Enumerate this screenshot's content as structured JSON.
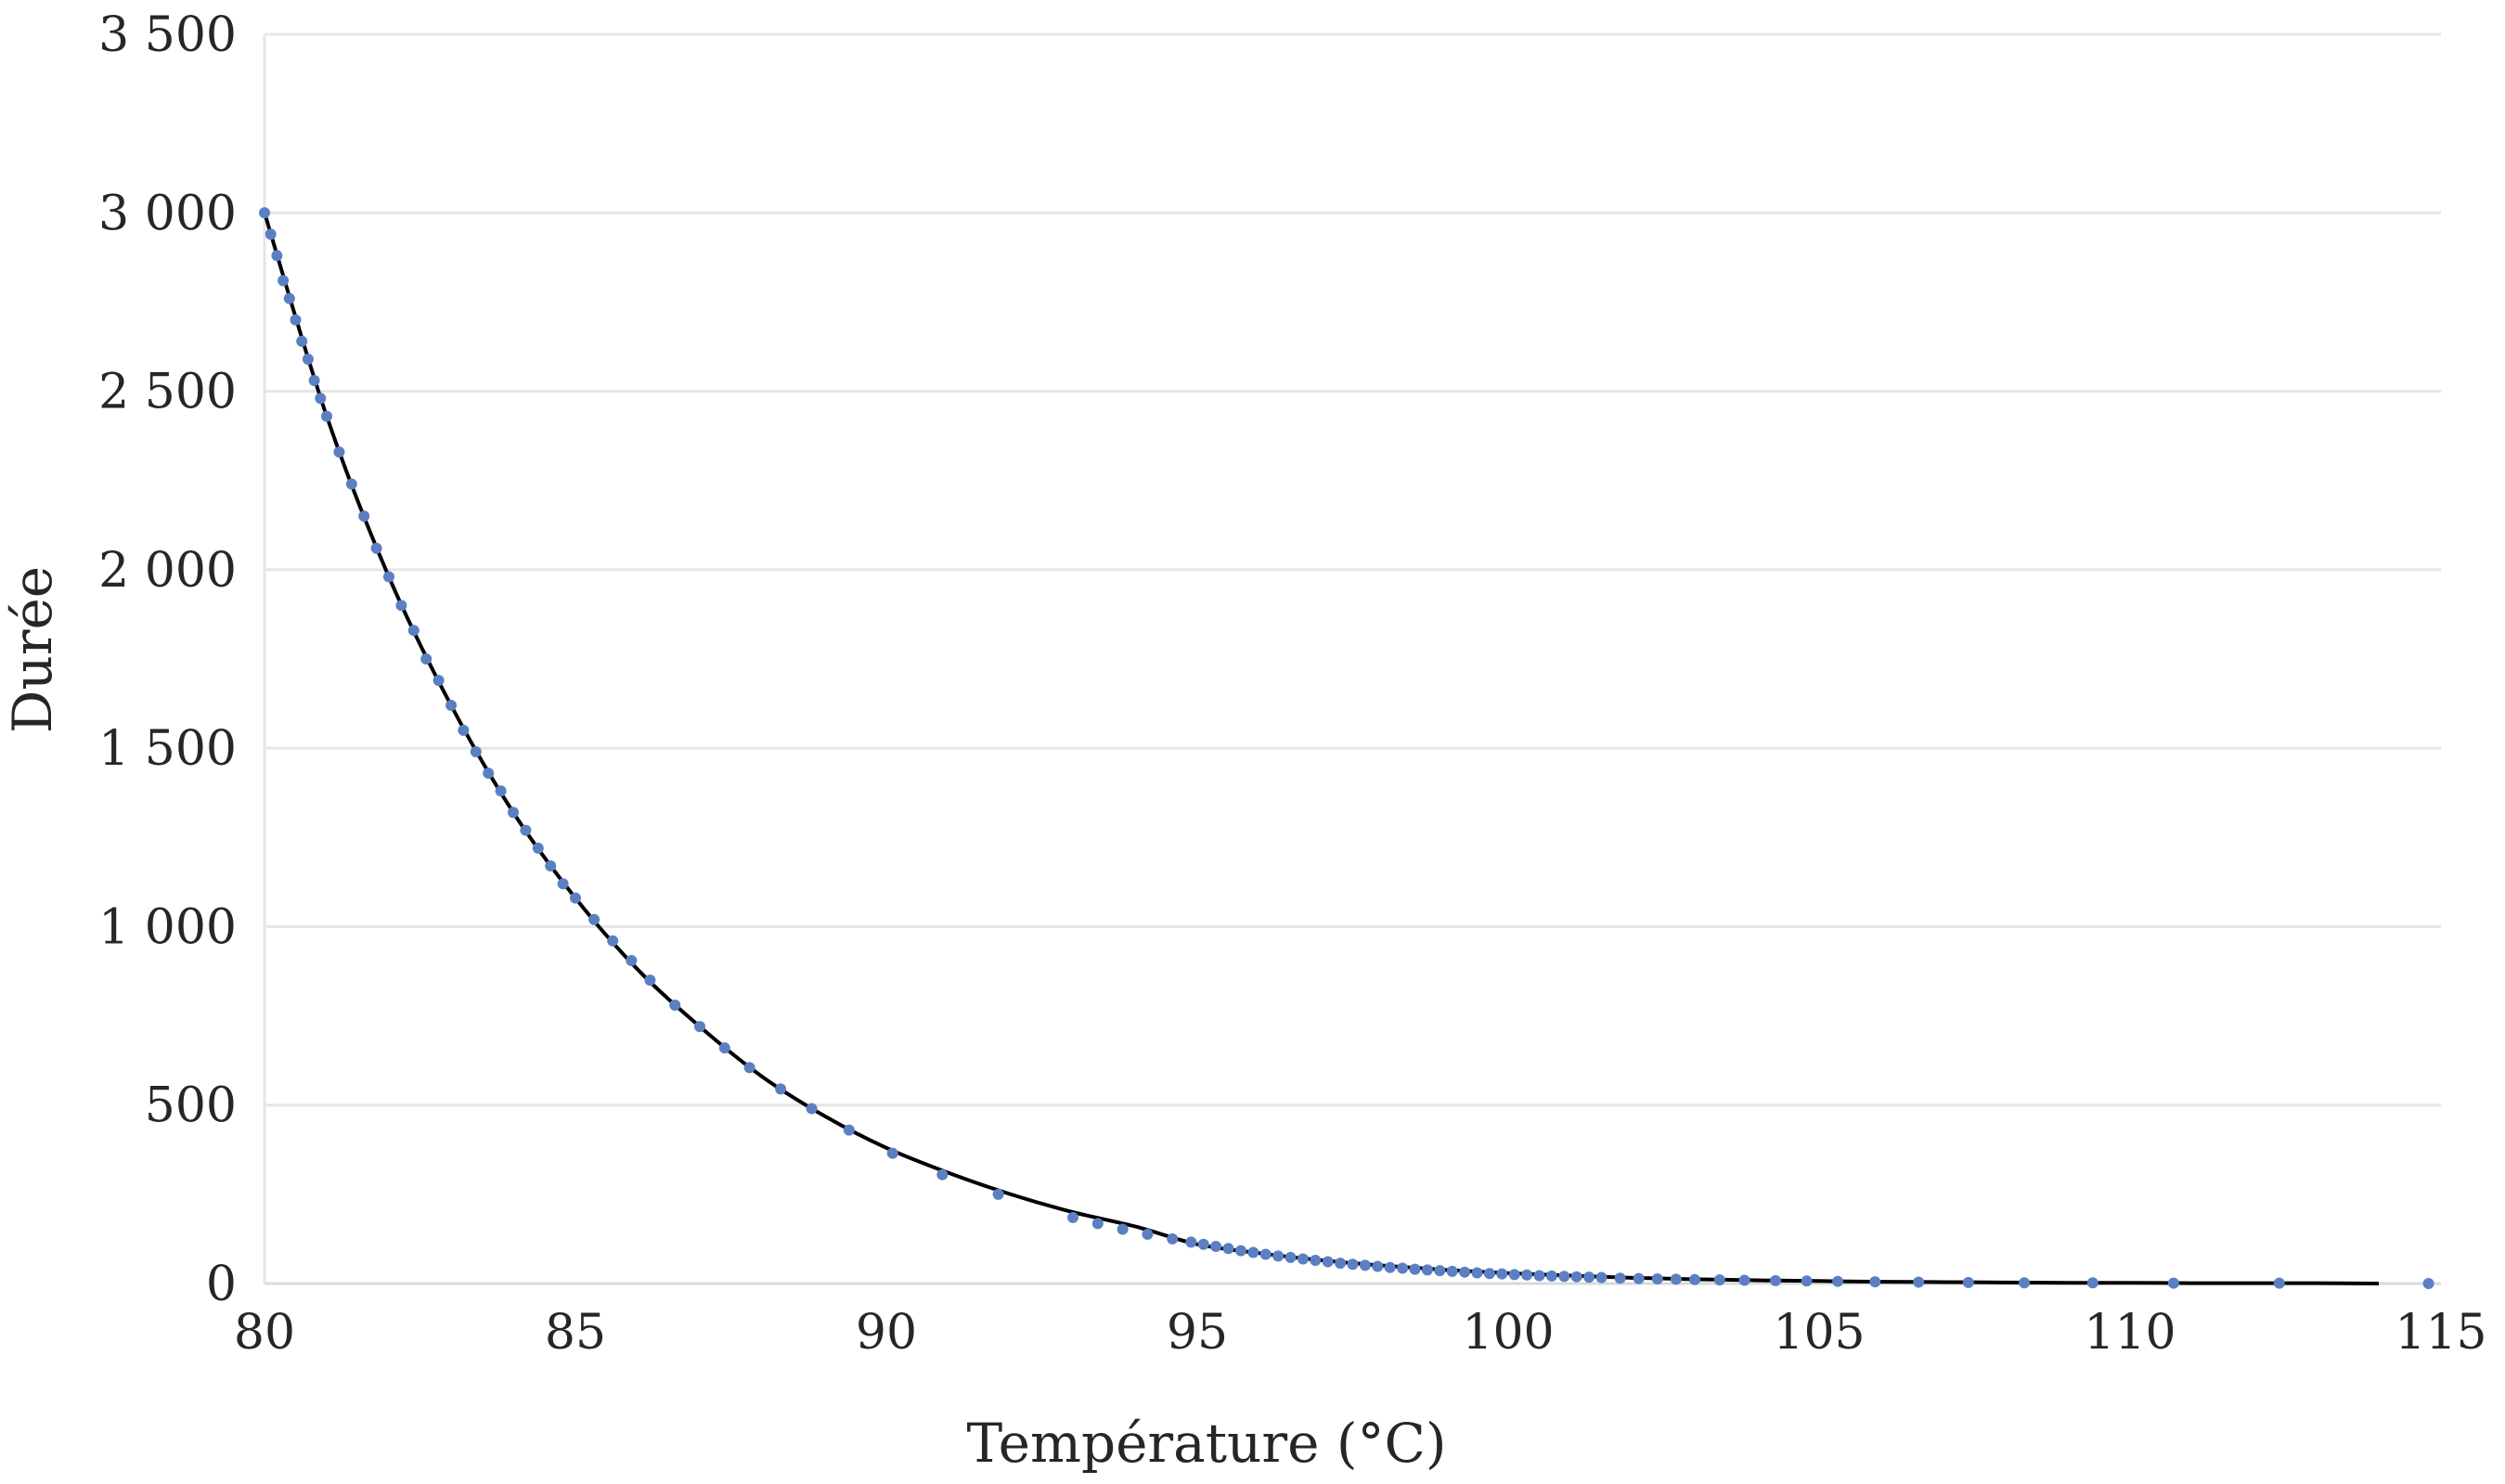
{
  "chart_data": {
    "type": "scatter",
    "title": "",
    "xlabel": "Température (°C)",
    "ylabel": "Durée",
    "xlim": [
      80,
      115
    ],
    "ylim": [
      0,
      3500
    ],
    "x_ticks": [
      80,
      85,
      90,
      95,
      100,
      105,
      110,
      115
    ],
    "x_tick_labels": [
      "80",
      "85",
      "90",
      "95",
      "100",
      "105",
      "110",
      "115"
    ],
    "y_ticks": [
      0,
      500,
      1000,
      1500,
      2000,
      2500,
      3000,
      3500
    ],
    "y_tick_labels": [
      "0",
      "500",
      "1 000",
      "1 500",
      "2 000",
      "2 500",
      "3 000",
      "3 500"
    ],
    "grid": "horizontal",
    "legend": "none",
    "series": [
      {
        "kind": "points",
        "color": "#5b7fc3",
        "x": [
          80.0,
          80.1,
          80.2,
          80.3,
          80.4,
          80.5,
          80.6,
          80.7,
          80.8,
          80.9,
          81.0,
          81.2,
          81.4,
          81.6,
          81.8,
          82.0,
          82.2,
          82.4,
          82.6,
          82.8,
          83.0,
          83.2,
          83.4,
          83.6,
          83.8,
          84.0,
          84.2,
          84.4,
          84.6,
          84.8,
          85.0,
          85.3,
          85.6,
          85.9,
          86.2,
          86.6,
          87.0,
          87.4,
          87.8,
          88.3,
          88.8,
          89.4,
          90.1,
          90.9,
          91.8,
          93.0,
          93.4,
          93.8,
          94.2,
          94.6,
          94.9,
          95.1,
          95.3,
          95.5,
          95.7,
          95.9,
          96.1,
          96.3,
          96.5,
          96.7,
          96.9,
          97.1,
          97.3,
          97.5,
          97.7,
          97.9,
          98.1,
          98.3,
          98.5,
          98.7,
          98.9,
          99.1,
          99.3,
          99.5,
          99.7,
          99.9,
          100.1,
          100.3,
          100.5,
          100.7,
          100.9,
          101.1,
          101.3,
          101.5,
          101.8,
          102.1,
          102.4,
          102.7,
          103.0,
          103.4,
          103.8,
          104.3,
          104.8,
          105.3,
          105.9,
          106.6,
          107.4,
          108.3,
          109.4,
          110.7,
          112.4,
          114.8
        ],
        "y": [
          3000,
          2940,
          2880,
          2810,
          2760,
          2700,
          2640,
          2590,
          2530,
          2480,
          2430,
          2330,
          2240,
          2150,
          2060,
          1980,
          1900,
          1830,
          1750,
          1690,
          1620,
          1550,
          1490,
          1430,
          1380,
          1320,
          1270,
          1220,
          1170,
          1120,
          1080,
          1020,
          960,
          905,
          850,
          780,
          720,
          660,
          605,
          545,
          490,
          430,
          365,
          305,
          250,
          185,
          168,
          152,
          138,
          125,
          116,
          110,
          104,
          98,
          92,
          87,
          82,
          77,
          73,
          69,
          65,
          61,
          57,
          54,
          51,
          48,
          45,
          43,
          40,
          38,
          36,
          34,
          32,
          30,
          28,
          27,
          25,
          24,
          22,
          21,
          20,
          19,
          18,
          17,
          15,
          14,
          13,
          12,
          11,
          10,
          9,
          8,
          7,
          6,
          5,
          4,
          3,
          2,
          2,
          1,
          1,
          0
        ]
      },
      {
        "kind": "fit-line",
        "color": "#000000",
        "x_range": [
          80,
          114
        ],
        "samples_x": [
          80,
          81,
          82,
          83,
          84,
          85,
          86,
          87,
          88,
          89,
          90,
          91,
          92,
          93,
          94,
          95,
          96,
          97,
          98,
          99,
          100,
          101,
          102,
          103,
          104,
          105,
          106,
          107,
          108,
          109,
          110,
          111,
          112,
          113,
          114
        ],
        "samples_y": [
          3000,
          2430,
          1980,
          1620,
          1320,
          1080,
          880,
          720,
          580,
          470,
          380,
          310,
          250,
          200,
          160,
          110,
          85,
          65,
          50,
          38,
          29,
          22,
          16,
          12,
          9,
          7,
          5,
          4,
          3,
          2,
          2,
          1,
          1,
          1,
          0
        ]
      }
    ]
  }
}
